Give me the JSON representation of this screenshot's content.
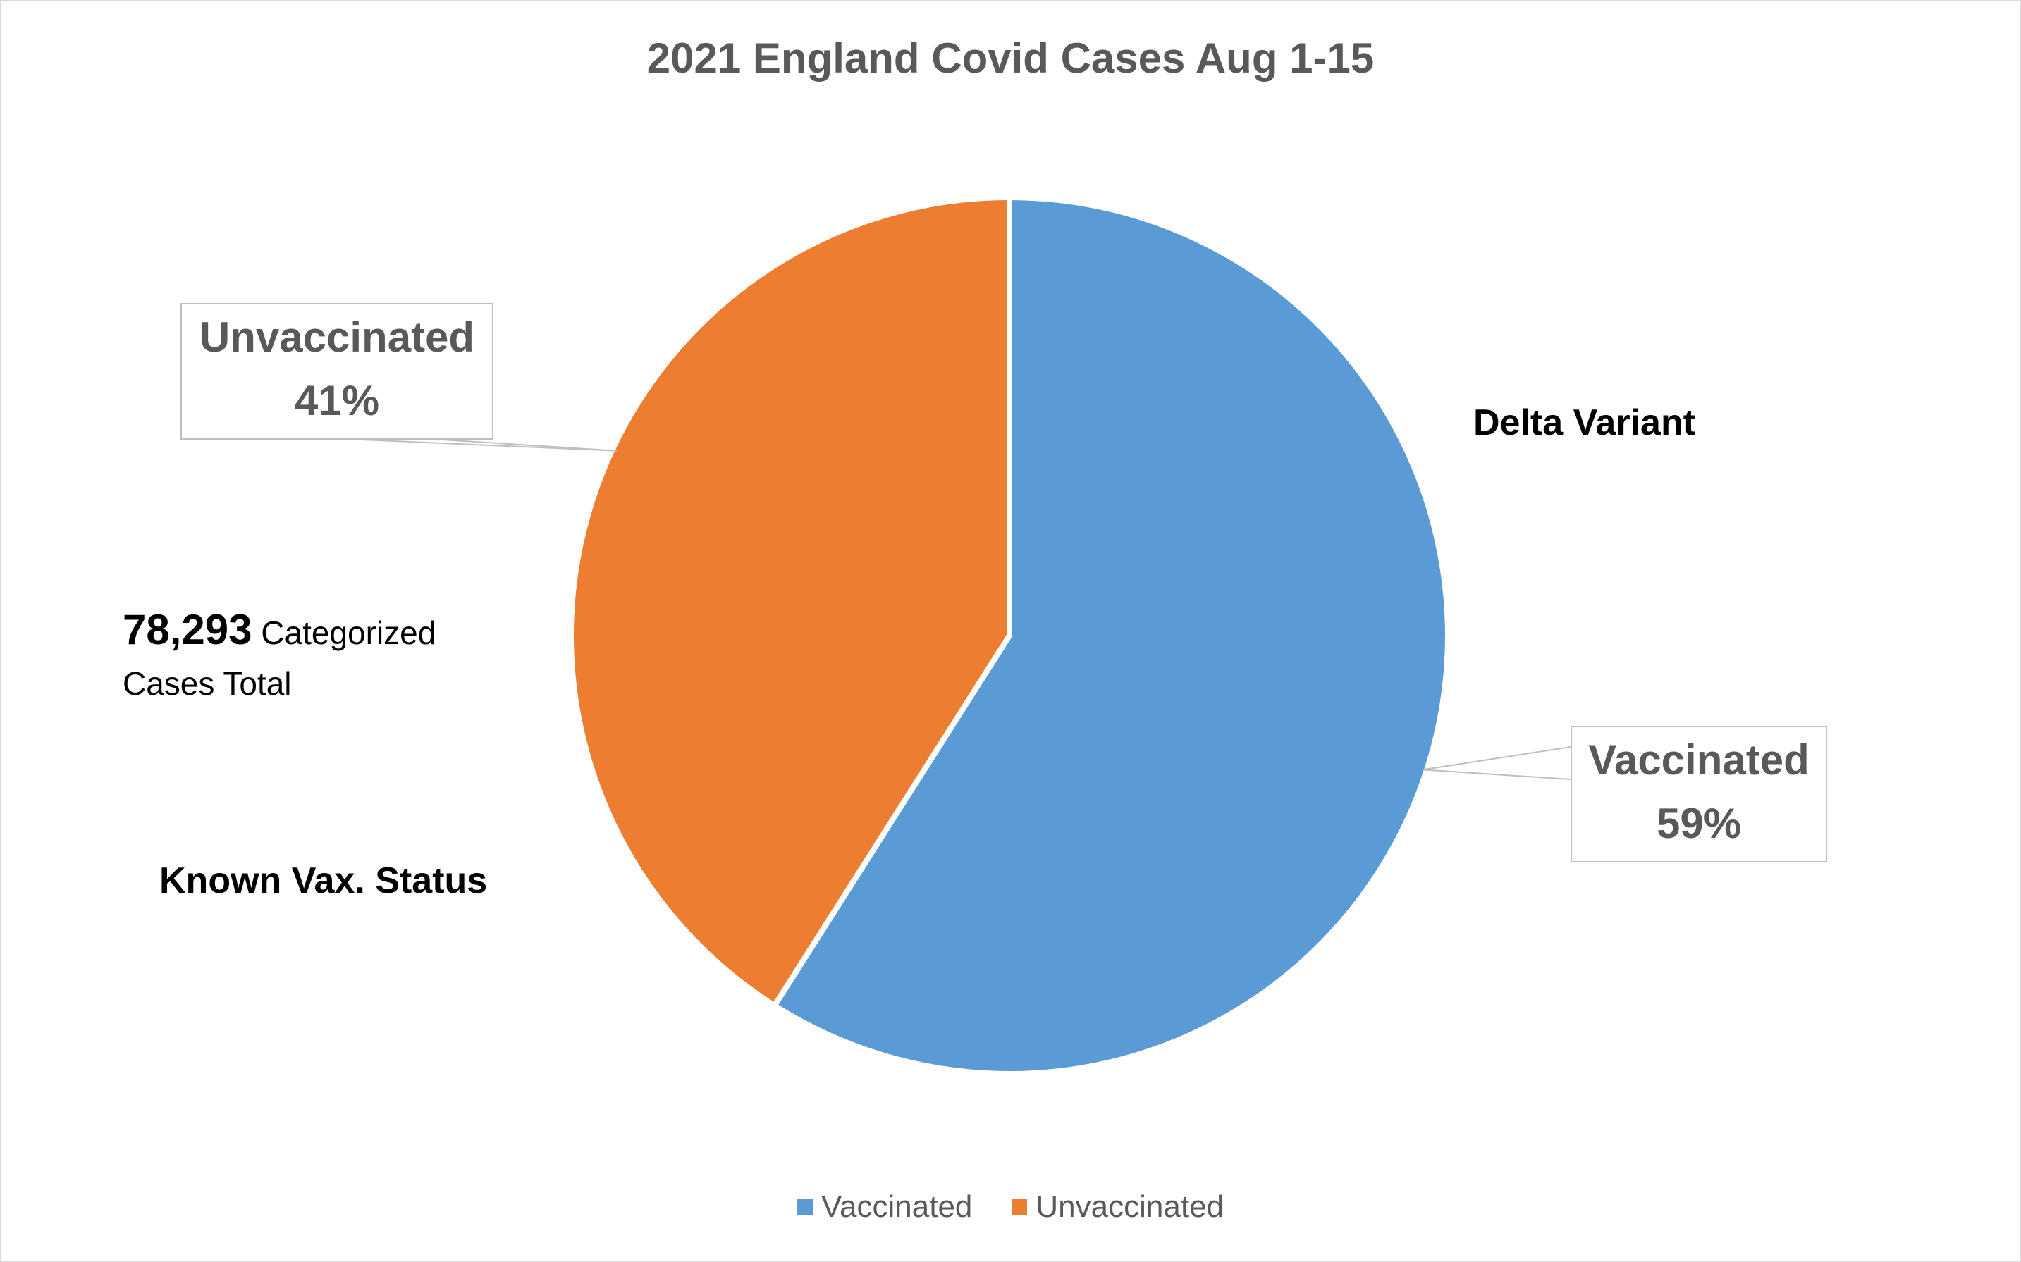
{
  "chart_data": {
    "type": "pie",
    "title": "2021 England Covid Cases Aug 1-15",
    "categories": [
      "Vaccinated",
      "Unvaccinated"
    ],
    "values": [
      59,
      41
    ],
    "unit": "%",
    "data_labels": [
      {
        "category": "Vaccinated",
        "label": "Vaccinated",
        "value": "59%"
      },
      {
        "category": "Unvaccinated",
        "label": "Unvaccinated",
        "value": "41%"
      }
    ],
    "colors": [
      "#5b9bd5",
      "#ed7d31"
    ],
    "legend": {
      "position": "bottom",
      "entries": [
        "Vaccinated",
        "Unvaccinated"
      ]
    },
    "annotations": {
      "variant": "Delta Variant",
      "total_number": "78,293",
      "total_text_1": "Categorized",
      "total_text_2": "Cases Total",
      "status": "Known Vax. Status"
    }
  }
}
